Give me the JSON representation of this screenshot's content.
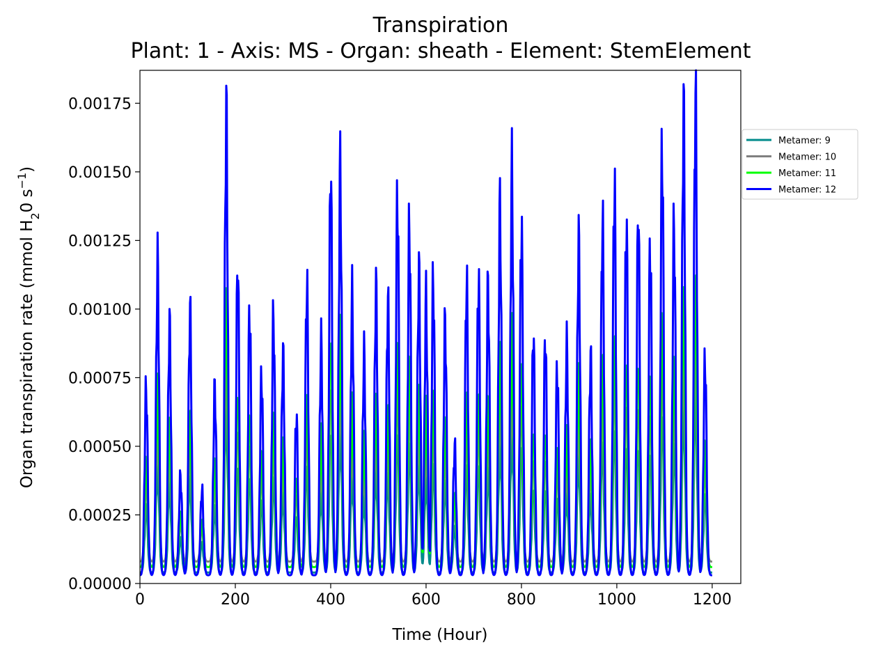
{
  "chart_data": {
    "type": "line",
    "title": "Transpiration",
    "subtitle": "Plant: 1 - Axis: MS - Organ: sheath - Element: StemElement",
    "xlabel": "Time (Hour)",
    "ylabel_main": "Organ transpiration rate (mmol H",
    "ylabel_sub": "2",
    "ylabel_mid": "0 s",
    "ylabel_sup": "−1",
    "ylabel_end": ")",
    "xlim": [
      0,
      1260
    ],
    "ylim": [
      0,
      0.00187
    ],
    "xticks": [
      0,
      200,
      400,
      600,
      800,
      1000,
      1200
    ],
    "xtick_labels": [
      "0",
      "200",
      "400",
      "600",
      "800",
      "1000",
      "1200"
    ],
    "yticks": [
      0,
      0.00025,
      0.0005,
      0.00075,
      0.001,
      0.00125,
      0.0015,
      0.00175
    ],
    "ytick_labels": [
      "0.00000",
      "0.00025",
      "0.00050",
      "0.00075",
      "0.00100",
      "0.00125",
      "0.00150",
      "0.00175"
    ],
    "grid": false,
    "legend_position": "outside-right",
    "x_range": [
      0,
      1200
    ],
    "peak_hours": [
      13,
      37,
      62,
      85,
      105,
      130,
      157,
      181,
      205,
      230,
      255,
      280,
      300,
      328,
      350,
      380,
      400,
      420,
      445,
      470,
      495,
      520,
      540,
      565,
      585,
      600,
      615,
      640,
      660,
      685,
      710,
      730,
      755,
      780,
      800,
      825,
      850,
      875,
      895,
      920,
      945,
      970,
      995,
      1020,
      1045,
      1070,
      1095,
      1120,
      1140,
      1165,
      1185
    ],
    "peak_values_metamer12": [
      0.00071,
      0.00116,
      0.00094,
      0.00039,
      0.00099,
      0.00034,
      0.00071,
      0.00171,
      0.00115,
      0.00099,
      0.00075,
      0.00097,
      0.00083,
      0.00061,
      0.00108,
      0.00087,
      0.00149,
      0.0015,
      0.00104,
      0.00083,
      0.00107,
      0.00102,
      0.0014,
      0.0013,
      0.00113,
      0.00103,
      0.0011,
      0.00095,
      0.0005,
      0.00109,
      0.0011,
      0.00108,
      0.00136,
      0.00149,
      0.00129,
      0.0009,
      0.00089,
      0.00078,
      0.00086,
      0.00124,
      0.00082,
      0.00131,
      0.00144,
      0.00131,
      0.00134,
      0.00123,
      0.00157,
      0.0013,
      0.00172,
      0.00178,
      0.00081
    ],
    "series": [
      {
        "name": "Metamer: 9",
        "color": "#008b8b",
        "scale": 0.35,
        "base": 4e-05
      },
      {
        "name": "Metamer: 10",
        "color": "#808080",
        "scale": 0.45,
        "base": 8e-05
      },
      {
        "name": "Metamer: 11",
        "color": "#00ff00",
        "scale": 0.58,
        "base": 6e-05
      },
      {
        "name": "Metamer: 12",
        "color": "#0000ff",
        "scale": 1.0,
        "base": 3e-05
      }
    ]
  }
}
